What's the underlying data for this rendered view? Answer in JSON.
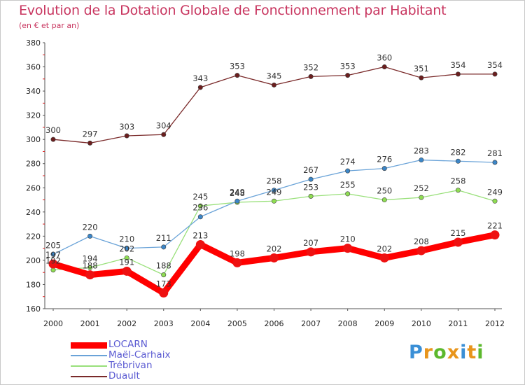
{
  "header": {
    "title": "Evolution de la Dotation Globale de Fonctionnement par Habitant",
    "subtitle": "(en € et par an)"
  },
  "logo": {
    "text": "Proxiti",
    "letter_colors": [
      "#3a8fd6",
      "#e8951c",
      "#5cb82d",
      "#e8951c",
      "#3a8fd6",
      "#e8951c",
      "#5cb82d"
    ]
  },
  "chart_data": {
    "type": "line",
    "title": "Evolution de la Dotation Globale de Fonctionnement par Habitant",
    "subtitle": "(en € et par an)",
    "xlabel": "",
    "ylabel": "",
    "x": [
      "2000",
      "2001",
      "2002",
      "2003",
      "2004",
      "2005",
      "2006",
      "2007",
      "2008",
      "2009",
      "2010",
      "2011",
      "2012"
    ],
    "ylim": [
      160,
      380
    ],
    "yticks": [
      160,
      180,
      200,
      220,
      240,
      260,
      280,
      300,
      320,
      340,
      360,
      380
    ],
    "grid": false,
    "legend_position": "bottom-left",
    "series": [
      {
        "name": "LOCARN",
        "values": [
          197,
          188,
          191,
          173,
          213,
          198,
          202,
          207,
          210,
          202,
          208,
          215,
          221
        ],
        "color": "#ff0000",
        "marker_color": "#ee1111"
      },
      {
        "name": "Maël-Carhaix",
        "values": [
          205,
          220,
          210,
          211,
          236,
          249,
          258,
          267,
          274,
          276,
          283,
          282,
          281
        ],
        "color": "#6aa3d8",
        "marker_color": "#3b86c8"
      },
      {
        "name": "Trébrivan",
        "values": [
          192,
          194,
          202,
          188,
          245,
          248,
          249,
          253,
          255,
          250,
          252,
          258,
          249
        ],
        "color": "#99e07a",
        "marker_color": "#8fdd52"
      },
      {
        "name": "Duault",
        "values": [
          300,
          297,
          303,
          304,
          343,
          353,
          345,
          352,
          353,
          360,
          351,
          354,
          354
        ],
        "color": "#7a2a2a",
        "marker_color": "#6b1e1e"
      }
    ]
  }
}
